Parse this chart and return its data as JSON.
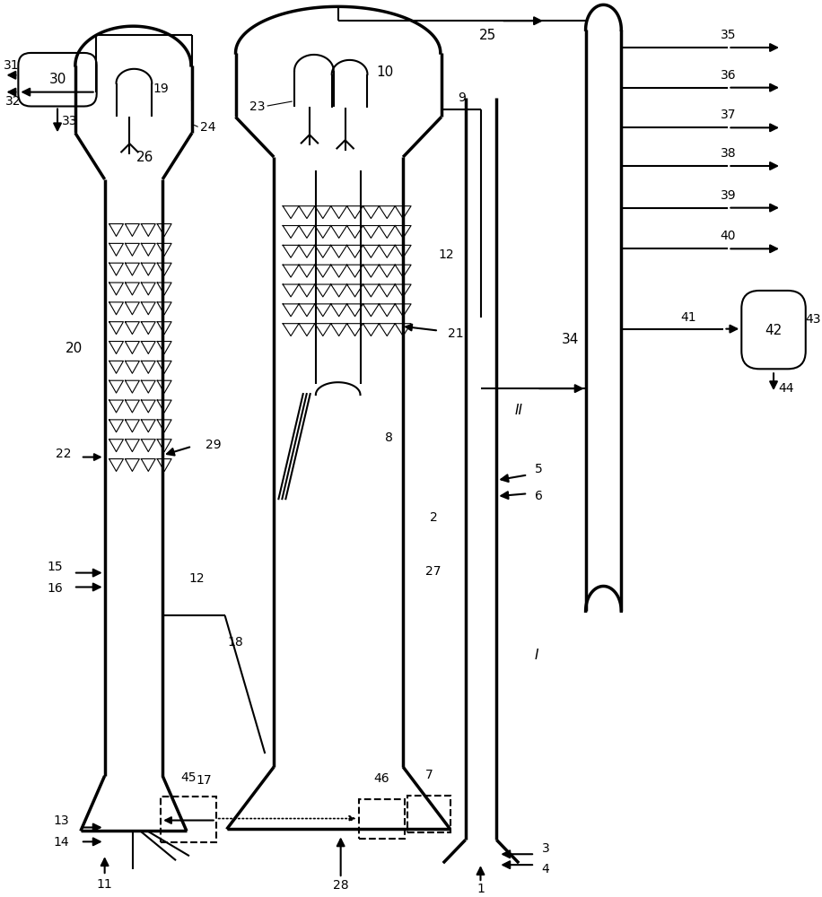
{
  "bg_color": "#ffffff",
  "line_color": "#000000",
  "lw": 1.5,
  "tlw": 2.5
}
